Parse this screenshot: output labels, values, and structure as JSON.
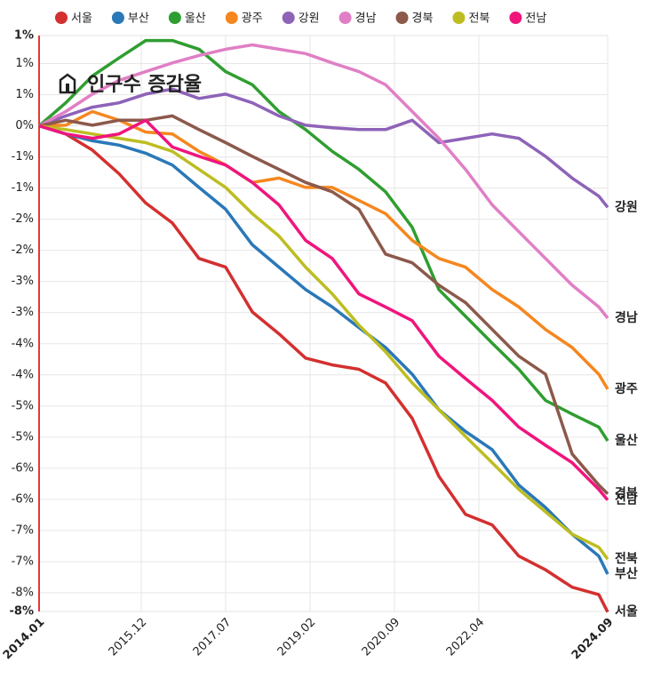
{
  "chart_data": {
    "type": "line",
    "title": "인구수 증감율",
    "x": [
      "2014.01",
      "2014.07",
      "2015.01",
      "2015.07",
      "2016.01",
      "2016.07",
      "2017.01",
      "2017.07",
      "2018.01",
      "2018.07",
      "2019.01",
      "2019.07",
      "2020.01",
      "2020.07",
      "2021.01",
      "2021.07",
      "2022.01",
      "2022.07",
      "2023.01",
      "2023.07",
      "2024.01",
      "2024.07",
      "2024.09"
    ],
    "xlim": [
      "2014.01",
      "2024.09"
    ],
    "xticks": [
      "2014.01",
      "2015.12",
      "2017.07",
      "2019.02",
      "2020.09",
      "2022.04",
      "2024.09"
    ],
    "ylim": [
      -7.8,
      1.45
    ],
    "yticks": [
      {
        "value": 1.45,
        "label": "1%"
      },
      {
        "value": 1,
        "label": "1%"
      },
      {
        "value": 0.5,
        "label": "1%"
      },
      {
        "value": 0,
        "label": "0%"
      },
      {
        "value": -0.5,
        "label": "-1%"
      },
      {
        "value": -1,
        "label": "-1%"
      },
      {
        "value": -1.5,
        "label": "-2%"
      },
      {
        "value": -2,
        "label": "-2%"
      },
      {
        "value": -2.5,
        "label": "-3%"
      },
      {
        "value": -3,
        "label": "-3%"
      },
      {
        "value": -3.5,
        "label": "-4%"
      },
      {
        "value": -4,
        "label": "-4%"
      },
      {
        "value": -4.5,
        "label": "-5%"
      },
      {
        "value": -5,
        "label": "-5%"
      },
      {
        "value": -5.5,
        "label": "-6%"
      },
      {
        "value": -6,
        "label": "-6%"
      },
      {
        "value": -6.5,
        "label": "-7%"
      },
      {
        "value": -7,
        "label": "-7%"
      },
      {
        "value": -7.5,
        "label": "-8%"
      },
      {
        "value": -7.8,
        "label": "-8%"
      }
    ],
    "grid": true,
    "series": [
      {
        "name": "서울",
        "color": "#d3302f",
        "values": [
          0,
          -0.13,
          -0.39,
          -0.77,
          -1.24,
          -1.56,
          -2.13,
          -2.27,
          -2.99,
          -3.34,
          -3.73,
          -3.84,
          -3.91,
          -4.13,
          -4.7,
          -5.63,
          -6.24,
          -6.41,
          -6.91,
          -7.13,
          -7.41,
          -7.53,
          -7.81
        ]
      },
      {
        "name": "부산",
        "color": "#2a78b8",
        "values": [
          0,
          -0.13,
          -0.24,
          -0.31,
          -0.44,
          -0.63,
          -0.99,
          -1.34,
          -1.91,
          -2.27,
          -2.63,
          -2.91,
          -3.24,
          -3.56,
          -3.99,
          -4.56,
          -4.91,
          -5.2,
          -5.77,
          -6.13,
          -6.56,
          -6.91,
          -7.2
        ]
      },
      {
        "name": "울산",
        "color": "#2f9e30",
        "values": [
          0,
          0.37,
          0.8,
          1.09,
          1.37,
          1.37,
          1.23,
          0.87,
          0.66,
          0.23,
          -0.06,
          -0.41,
          -0.7,
          -1.06,
          -1.63,
          -2.63,
          -3.06,
          -3.49,
          -3.91,
          -4.41,
          -4.63,
          -4.84,
          -5.06
        ]
      },
      {
        "name": "광주",
        "color": "#f5871f",
        "values": [
          0,
          0.01,
          0.23,
          0.09,
          -0.1,
          -0.13,
          -0.41,
          -0.63,
          -0.91,
          -0.84,
          -0.99,
          -0.99,
          -1.2,
          -1.41,
          -1.84,
          -2.13,
          -2.27,
          -2.63,
          -2.91,
          -3.27,
          -3.56,
          -3.99,
          -4.23
        ]
      },
      {
        "name": "강원",
        "color": "#8e63b8",
        "values": [
          0,
          0.16,
          0.3,
          0.37,
          0.51,
          0.59,
          0.44,
          0.51,
          0.37,
          0.16,
          0.01,
          -0.03,
          -0.06,
          -0.06,
          0.09,
          -0.27,
          -0.2,
          -0.13,
          -0.2,
          -0.49,
          -0.84,
          -1.13,
          -1.31
        ]
      },
      {
        "name": "경남",
        "color": "#e07fc5",
        "values": [
          0,
          0.23,
          0.51,
          0.73,
          0.87,
          1.01,
          1.13,
          1.23,
          1.3,
          1.23,
          1.16,
          1.01,
          0.87,
          0.66,
          0.23,
          -0.2,
          -0.7,
          -1.27,
          -1.7,
          -2.13,
          -2.56,
          -2.91,
          -3.09
        ]
      },
      {
        "name": "경북",
        "color": "#8c594b",
        "values": [
          0,
          0.09,
          0.01,
          0.09,
          0.09,
          0.16,
          -0.06,
          -0.27,
          -0.49,
          -0.7,
          -0.91,
          -1.06,
          -1.34,
          -2.06,
          -2.2,
          -2.56,
          -2.84,
          -3.27,
          -3.7,
          -3.99,
          -5.27,
          -5.77,
          -5.91
        ]
      },
      {
        "name": "전북",
        "color": "#bdbd22",
        "values": [
          0,
          -0.06,
          -0.13,
          -0.2,
          -0.27,
          -0.41,
          -0.7,
          -0.99,
          -1.41,
          -1.77,
          -2.27,
          -2.7,
          -3.2,
          -3.63,
          -4.13,
          -4.56,
          -4.99,
          -5.41,
          -5.84,
          -6.2,
          -6.56,
          -6.77,
          -6.96
        ]
      },
      {
        "name": "전남",
        "color": "#f0157d",
        "values": [
          0,
          -0.13,
          -0.2,
          -0.13,
          0.09,
          -0.34,
          -0.49,
          -0.63,
          -0.91,
          -1.27,
          -1.84,
          -2.13,
          -2.7,
          -2.91,
          -3.13,
          -3.7,
          -4.06,
          -4.41,
          -4.84,
          -5.13,
          -5.41,
          -5.84,
          -6.01
        ]
      }
    ]
  }
}
